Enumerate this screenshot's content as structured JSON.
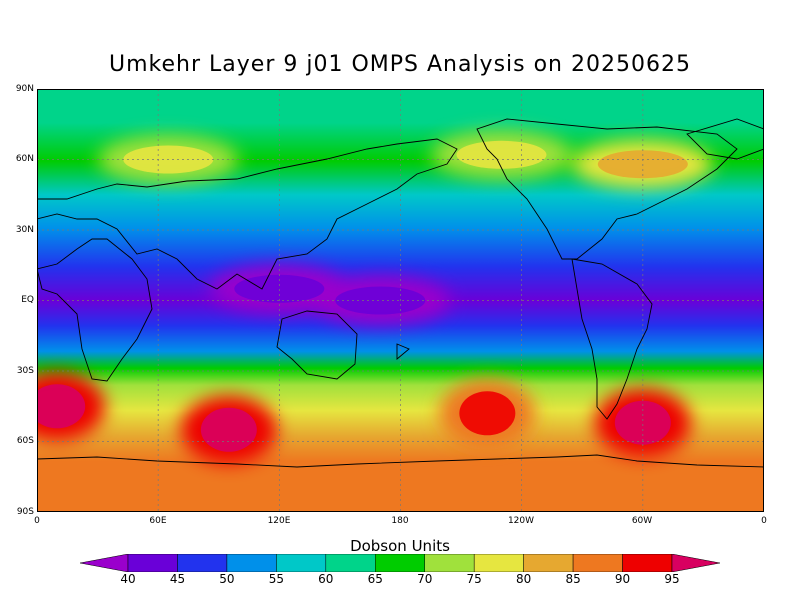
{
  "title": "Umkehr Layer 9 j01 OMPS Analysis on 20250625",
  "colorbar": {
    "title": "Dobson Units",
    "labels": [
      "40",
      "45",
      "50",
      "55",
      "60",
      "65",
      "70",
      "75",
      "80",
      "85",
      "90",
      "95"
    ],
    "colors": [
      "#9a00cc",
      "#6a00d8",
      "#2233ee",
      "#0090ea",
      "#00c8c8",
      "#00d48a",
      "#00cc00",
      "#a0e13c",
      "#e6e640",
      "#e6a830",
      "#ee7820",
      "#ee0000",
      "#d80060"
    ]
  },
  "axes": {
    "y_labels": [
      "90N",
      "60N",
      "30N",
      "EQ",
      "30S",
      "60S",
      "90S"
    ],
    "x_labels": [
      "0",
      "60E",
      "120E",
      "180",
      "120W",
      "60W",
      "0"
    ]
  },
  "chart_data": {
    "type": "heatmap",
    "title": "Umkehr Layer 9 j01 OMPS Analysis on 20250625",
    "units": "Dobson Units",
    "lon_range": [
      0,
      360
    ],
    "lat_range": [
      -90,
      90
    ],
    "value_range": [
      40,
      95
    ],
    "zonal_profile": [
      {
        "lat": 90,
        "value": 66
      },
      {
        "lat": 75,
        "value": 68
      },
      {
        "lat": 60,
        "value": 72
      },
      {
        "lat": 45,
        "value": 64
      },
      {
        "lat": 30,
        "value": 60
      },
      {
        "lat": 15,
        "value": 53
      },
      {
        "lat": 0,
        "value": 45
      },
      {
        "lat": -15,
        "value": 52
      },
      {
        "lat": -30,
        "value": 73
      },
      {
        "lat": -45,
        "value": 78
      },
      {
        "lat": -60,
        "value": 85
      },
      {
        "lat": -75,
        "value": 87
      },
      {
        "lat": -90,
        "value": 86
      }
    ],
    "features": [
      {
        "lon": 10,
        "lat": -45,
        "value": 95
      },
      {
        "lon": 95,
        "lat": -55,
        "value": 95
      },
      {
        "lon": 223,
        "lat": -48,
        "value": 93
      },
      {
        "lon": 300,
        "lat": -52,
        "value": 95
      },
      {
        "lon": 65,
        "lat": 60,
        "value": 77
      },
      {
        "lon": 230,
        "lat": 62,
        "value": 76
      },
      {
        "lon": 300,
        "lat": 58,
        "value": 80
      },
      {
        "lon": 170,
        "lat": 0,
        "value": 43
      },
      {
        "lon": 120,
        "lat": 5,
        "value": 41
      }
    ]
  }
}
